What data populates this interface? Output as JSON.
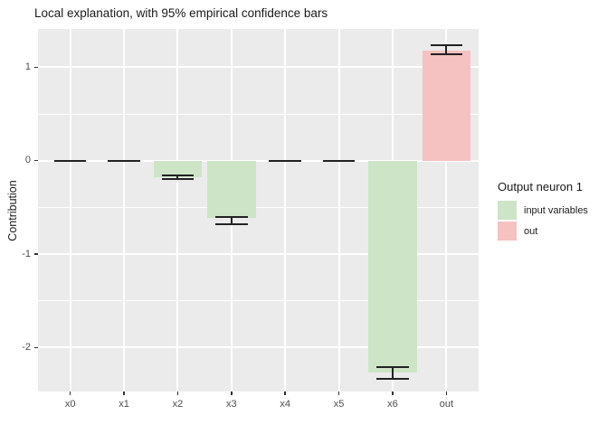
{
  "title": "Local explanation, with 95% empirical confidence bars",
  "colors": {
    "panel_bg": "#EBEBEB",
    "grid": "#FFFFFF",
    "input_fill": "#CDE5C6",
    "out_fill": "#F6C1C1",
    "errorbar": "#222222",
    "tick_label": "#4D4D4D"
  },
  "legend": {
    "title": "Output neuron 1",
    "items": [
      {
        "label": "input variables",
        "color": "#CDE5C6"
      },
      {
        "label": "out",
        "color": "#F6C1C1"
      }
    ]
  },
  "chart_data": {
    "type": "bar",
    "title": "Local explanation, with 95% empirical confidence bars",
    "xlabel": "",
    "ylabel": "Contribution",
    "categories": [
      "x0",
      "x1",
      "x2",
      "x3",
      "x4",
      "x5",
      "x6",
      "out"
    ],
    "values": [
      0,
      0,
      -0.18,
      -0.61,
      0,
      0,
      -2.27,
      1.18
    ],
    "ci_low": [
      0,
      0,
      -0.2,
      -0.68,
      0,
      0,
      -2.33,
      1.14
    ],
    "ci_high": [
      0,
      0,
      -0.16,
      -0.6,
      0,
      0,
      -2.21,
      1.24
    ],
    "groups": [
      "input variables",
      "input variables",
      "input variables",
      "input variables",
      "input variables",
      "input variables",
      "input variables",
      "out"
    ],
    "yticks": [
      1,
      0,
      -1,
      -2
    ],
    "yticks_minor": [
      0.5,
      -0.5,
      -1.5
    ],
    "ylim": [
      -2.47,
      1.41
    ],
    "grid": true,
    "legend_position": "right"
  }
}
